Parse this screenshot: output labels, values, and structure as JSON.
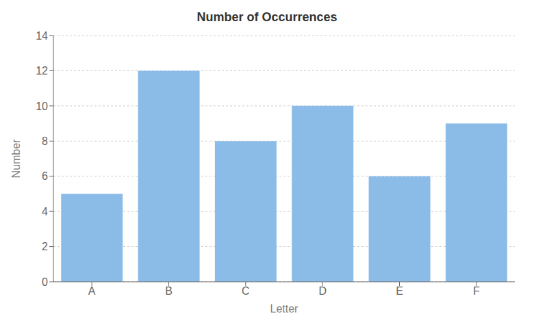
{
  "chart_data": {
    "type": "bar",
    "title": "Number of Occurrences",
    "xlabel": "Letter",
    "ylabel": "Number",
    "categories": [
      "A",
      "B",
      "C",
      "D",
      "E",
      "F"
    ],
    "values": [
      5,
      12,
      8,
      10,
      6,
      9
    ],
    "color": "#8BBCE8",
    "ylim": [
      0,
      14
    ],
    "yticks": [
      0,
      2,
      4,
      6,
      8,
      10,
      12,
      14
    ],
    "grid": true
  }
}
